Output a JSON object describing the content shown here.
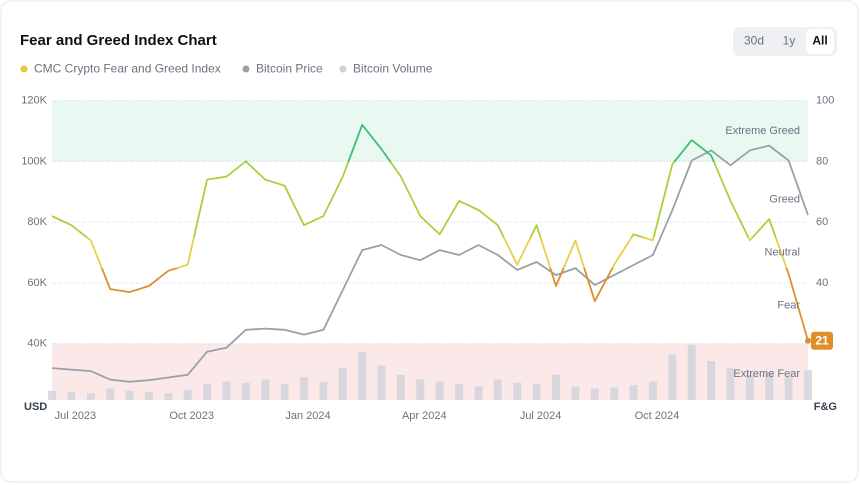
{
  "chart_data": {
    "type": "line",
    "title": "Fear and Greed Index Chart",
    "range_buttons": [
      "30d",
      "1y",
      "All"
    ],
    "selected_range": "All",
    "y_label": "USD",
    "y2_label": "F&G",
    "categories": [
      null,
      "Jul 2023",
      null,
      null,
      null,
      null,
      null,
      "Oct 2023",
      null,
      null,
      null,
      null,
      null,
      "Jan 2024",
      null,
      null,
      null,
      null,
      null,
      "Apr 2024",
      null,
      null,
      null,
      null,
      null,
      "Jul 2024",
      null,
      null,
      null,
      null,
      null,
      "Oct 2024",
      null,
      null,
      null,
      null,
      null,
      null,
      null,
      null
    ],
    "series": [
      {
        "name": "CMC Crypto Fear and Greed Index",
        "color": "#e8c93a",
        "axis": "y2",
        "values": [
          62,
          59,
          54,
          38,
          37,
          39,
          44,
          46,
          74,
          75,
          80,
          74,
          72,
          59,
          62,
          75,
          92,
          84,
          75,
          62,
          56,
          67,
          64,
          59,
          46,
          59,
          39,
          54,
          34,
          46,
          56,
          54,
          79,
          87,
          82,
          67,
          54,
          61,
          43,
          21
        ]
      },
      {
        "name": "Bitcoin Price",
        "color": "#9aa0aa",
        "axis": "y",
        "values": [
          32000,
          31500,
          31000,
          28200,
          27500,
          28000,
          28900,
          29800,
          37400,
          38700,
          44600,
          45000,
          44600,
          43000,
          44600,
          57700,
          70800,
          72500,
          69200,
          67500,
          70800,
          69200,
          72500,
          69200,
          64300,
          66900,
          62600,
          64900,
          59300,
          62600,
          65900,
          69200,
          83900,
          100300,
          103600,
          98700,
          103600,
          105200,
          100300,
          82300
        ]
      },
      {
        "name": "Bitcoin Volume",
        "color": "#cfd2da",
        "axis": "volume",
        "values": [
          8,
          7,
          6,
          10,
          8,
          7,
          6,
          9,
          14,
          16,
          15,
          18,
          14,
          20,
          16,
          28,
          42,
          30,
          22,
          18,
          16,
          14,
          12,
          18,
          15,
          14,
          22,
          12,
          10,
          11,
          13,
          16,
          40,
          48,
          34,
          28,
          22,
          24,
          20,
          26
        ]
      }
    ],
    "ylim": [
      21500,
      122500
    ],
    "yticks": [
      {
        "value": 40000,
        "label": "40K"
      },
      {
        "value": 60000,
        "label": "60K"
      },
      {
        "value": 80000,
        "label": "80K"
      },
      {
        "value": 100000,
        "label": "100K"
      },
      {
        "value": 120000,
        "label": "120K"
      }
    ],
    "y2lim": [
      1.5,
      102.5
    ],
    "y2ticks": [
      20,
      40,
      60,
      80,
      100
    ],
    "zones": [
      {
        "from": 0,
        "to": 20,
        "label": "Extreme Fear",
        "color": "#e0564a",
        "fill": "#fbe9ea"
      },
      {
        "from": 20,
        "to": 45,
        "label": "Fear",
        "color": "#de8f2c"
      },
      {
        "from": 45,
        "to": 55,
        "label": "Neutral",
        "color": "#e8cf4a"
      },
      {
        "from": 55,
        "to": 80,
        "label": "Greed",
        "color": "#a9d13f"
      },
      {
        "from": 80,
        "to": 100,
        "label": "Extreme Greed",
        "color": "#3fbf72",
        "fill": "#e9f8f0"
      }
    ],
    "grid": true
  }
}
